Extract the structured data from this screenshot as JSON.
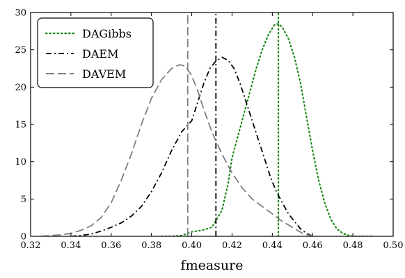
{
  "chart_data": {
    "type": "line",
    "title": "",
    "xlabel": "fmeasure",
    "ylabel": "",
    "xlim": [
      0.32,
      0.5
    ],
    "ylim": [
      0,
      30
    ],
    "xticks": [
      "0.32",
      "0.34",
      "0.36",
      "0.38",
      "0.40",
      "0.42",
      "0.44",
      "0.46",
      "0.48",
      "0.50"
    ],
    "yticks": [
      "0",
      "5",
      "10",
      "15",
      "20",
      "25",
      "30"
    ],
    "grid": false,
    "legend_position": "top-left",
    "series": [
      {
        "name": "DAGibbs",
        "color": "#1a8a1a",
        "style": "dotted",
        "mean_line_x": 0.443,
        "x": [
          0.385,
          0.39,
          0.395,
          0.398,
          0.4,
          0.405,
          0.41,
          0.415,
          0.418,
          0.42,
          0.423,
          0.426,
          0.429,
          0.432,
          0.435,
          0.438,
          0.441,
          0.443,
          0.445,
          0.448,
          0.451,
          0.454,
          0.457,
          0.46,
          0.463,
          0.466,
          0.469,
          0.472,
          0.475,
          0.478,
          0.481,
          0.485,
          0.49
        ],
        "y": [
          0,
          0,
          0.1,
          0.4,
          0.6,
          0.8,
          1.2,
          3.5,
          7,
          10.5,
          13.5,
          16.5,
          19.5,
          22.5,
          25,
          27,
          28.3,
          28.5,
          28,
          26.5,
          24,
          20.5,
          16,
          11.5,
          7.5,
          4.5,
          2.3,
          1,
          0.4,
          0.1,
          0,
          0,
          0
        ]
      },
      {
        "name": "DAEM",
        "color": "#000000",
        "style": "dashdot",
        "mean_line_x": 0.412,
        "x": [
          0.34,
          0.345,
          0.35,
          0.355,
          0.36,
          0.365,
          0.37,
          0.375,
          0.38,
          0.385,
          0.39,
          0.395,
          0.4,
          0.403,
          0.406,
          0.409,
          0.412,
          0.415,
          0.418,
          0.421,
          0.424,
          0.427,
          0.43,
          0.433,
          0.436,
          0.439,
          0.442,
          0.445,
          0.448,
          0.451,
          0.454,
          0.457,
          0.46
        ],
        "y": [
          0,
          0.1,
          0.3,
          0.7,
          1.2,
          1.8,
          2.7,
          4,
          6,
          8.5,
          11.5,
          14,
          15.5,
          18,
          20.5,
          22.5,
          23.5,
          24,
          23.6,
          22.5,
          20.5,
          18,
          15.5,
          13,
          10.5,
          8,
          6,
          4.5,
          3,
          2,
          1,
          0.4,
          0
        ]
      },
      {
        "name": "DAVEM",
        "color": "#7f7f7f",
        "style": "dashed",
        "mean_line_x": 0.398,
        "x": [
          0.325,
          0.33,
          0.335,
          0.34,
          0.345,
          0.35,
          0.355,
          0.36,
          0.365,
          0.37,
          0.375,
          0.38,
          0.385,
          0.39,
          0.394,
          0.397,
          0.4,
          0.403,
          0.406,
          0.41,
          0.415,
          0.42,
          0.425,
          0.43,
          0.435,
          0.44,
          0.445,
          0.45,
          0.455,
          0.46
        ],
        "y": [
          0,
          0.1,
          0.2,
          0.4,
          0.8,
          1.4,
          2.5,
          4.5,
          7.5,
          11,
          15,
          18.5,
          21,
          22.5,
          23,
          22.8,
          21.5,
          19.5,
          17,
          14,
          11,
          8.5,
          6.5,
          5,
          4,
          3,
          2,
          1.2,
          0.4,
          0
        ]
      }
    ]
  }
}
